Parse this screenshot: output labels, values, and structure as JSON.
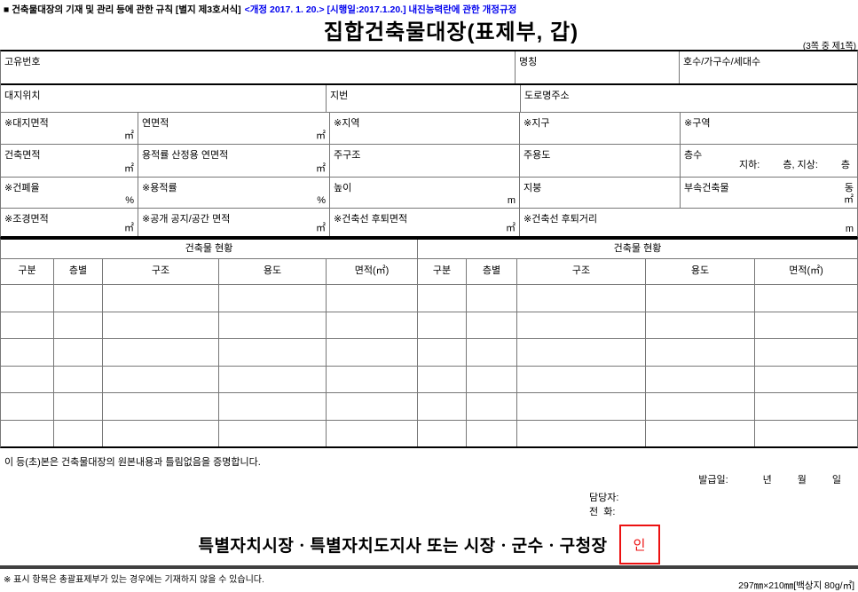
{
  "colors": {
    "amendment_blue": "#0000ee",
    "seal_red": "#ec1111",
    "bottom_rule_gray": "#404040"
  },
  "top": {
    "note_black": "■ 건축물대장의 기재 및 관리 등에 관한 규칙 [별지 제3호서식]",
    "note_blue": "<개정 2017. 1. 20.> [시행일:2017.1.20.] 내진능력란에 관한 개정규정",
    "title": "집합건축물대장(표제부, 갑)",
    "page_indicator": "(3쪽 중 제1쪽)"
  },
  "units": {
    "sqm": "㎡",
    "percent": "%",
    "meter": "m",
    "dong": "동"
  },
  "info": {
    "unique_no": "고유번호",
    "name": "명칭",
    "ho_count": "호수/가구수/세대수",
    "site_location": "대지위치",
    "lot_number": "지번",
    "road_address": "도로명주소",
    "site_area": "※대지면적",
    "total_floor_area": "연면적",
    "zone": "※지역",
    "district": "※지구",
    "section": "※구역",
    "building_area": "건축면적",
    "far_floor_area": "용적률 산정용 연면적",
    "main_structure": "주구조",
    "main_use": "주용도",
    "floors": "층수",
    "floors_basement": "지하:",
    "floors_mid": "층, 지상:",
    "floors_end": "층",
    "coverage_ratio": "※건폐율",
    "floor_area_ratio": "※용적률",
    "height": "높이",
    "roof": "지붕",
    "annex_building": "부속건축물",
    "landscape_area": "※조경면적",
    "open_space_area": "※공개 공지/공간 면적",
    "setback_area": "※건축선 후퇴면적",
    "setback_distance": "※건축선 후퇴거리"
  },
  "status": {
    "title": "건축물 현황",
    "columns": {
      "gubun": "구분",
      "floor": "층별",
      "structure": "구조",
      "use": "용도",
      "area": "면적(㎡)"
    },
    "empty_rows": 6
  },
  "cert": {
    "statement": "이 등(초)본은 건축물대장의 원본내용과 틀림없음을 증명합니다.",
    "issue_label": "발급일:",
    "year": "년",
    "month": "월",
    "day": "일",
    "officer": "담당자:",
    "phone": "전  화:",
    "authority": "특별자치시장ㆍ특별자치도지사 또는 시장ㆍ군수ㆍ구청장",
    "seal": "인"
  },
  "footer": {
    "note": "※ 표시 항목은 총괄표제부가 있는 경우에는 기재하지 않을 수 있습니다.",
    "paper_size": "297㎜×210㎜[백상지 80g/㎡]"
  }
}
